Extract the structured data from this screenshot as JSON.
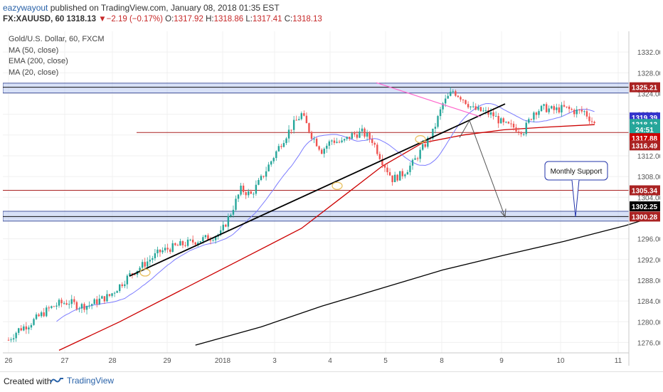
{
  "header": {
    "author": "eazywayout",
    "published_text": "published on TradingView.com, January 08, 2018 01:35 EST",
    "symbol": "FX:XAUUSD, 60",
    "last": "1318.13",
    "change_arrow": "▼",
    "change": "−2.19 (−0.17%)",
    "o_label": "O:",
    "o_value": "1317.92",
    "h_label": "H:",
    "h_value": "1318.86",
    "l_label": "L:",
    "l_value": "1317.41",
    "c_label": "C:",
    "c_value": "1318.13"
  },
  "legend": {
    "title": "Gold/U.S. Dollar, 60, FXCM",
    "ma50": "MA (50, close)",
    "ema200": "EMA (200, close)",
    "ma20": "MA (20, close)"
  },
  "footer": {
    "created_with": "Created with",
    "brand": "TradingView"
  },
  "colors": {
    "up": "#26a69a",
    "down": "#ef5350",
    "ema200": "#000000",
    "ma50": "#cc0000",
    "ma20": "#7b7bff",
    "zone": "#b8c8f0",
    "trendline": "#000000",
    "wedge": "#ff66cc",
    "horizontal": "#aa2222"
  },
  "chart_data": {
    "type": "candlestick",
    "symbol": "Gold/U.S. Dollar",
    "timeframe": "60",
    "y_range": [
      1274,
      1336
    ],
    "y_ticks": [
      "1276.00",
      "1280.00",
      "1284.00",
      "1288.00",
      "1292.00",
      "1296.00",
      "1300.00",
      "1304.00",
      "1308.00",
      "1312.00",
      "1316.00",
      "1320.00",
      "1324.00",
      "1328.00",
      "1332.00"
    ],
    "x_ticks": [
      "26",
      "27",
      "28",
      "29",
      "2018",
      "3",
      "4",
      "5",
      "8",
      "9",
      "10",
      "11"
    ],
    "price_tags": [
      {
        "value": "1325.21",
        "color": "#aa2222"
      },
      {
        "value": "1319.39",
        "color": "#3333cc"
      },
      {
        "value": "1318.13",
        "color": "#26a69a"
      },
      {
        "value": "24:51",
        "color": "#26a69a"
      },
      {
        "value": "1317.88",
        "color": "#cc0000"
      },
      {
        "value": "1316.49",
        "color": "#aa2222"
      },
      {
        "value": "1305.34",
        "color": "#aa2222"
      },
      {
        "value": "1302.25",
        "color": "#000000"
      },
      {
        "value": "1300.28",
        "color": "#aa2222"
      }
    ],
    "annotations": [
      {
        "text": "Monthly Support"
      }
    ],
    "price_path": [
      [
        0,
        1276.5
      ],
      [
        4,
        1278.5
      ],
      [
        8,
        1279.5
      ],
      [
        12,
        1281
      ],
      [
        16,
        1282.5
      ],
      [
        20,
        1283.5
      ],
      [
        24,
        1283.8
      ],
      [
        28,
        1283
      ],
      [
        32,
        1283.2
      ],
      [
        36,
        1284.2
      ],
      [
        40,
        1285
      ],
      [
        44,
        1287
      ],
      [
        48,
        1289
      ],
      [
        52,
        1290.5
      ],
      [
        56,
        1292
      ],
      [
        60,
        1293.5
      ],
      [
        64,
        1294.2
      ],
      [
        68,
        1294.8
      ],
      [
        72,
        1295.3
      ],
      [
        76,
        1295.8
      ],
      [
        80,
        1296.3
      ],
      [
        84,
        1297
      ],
      [
        88,
        1301
      ],
      [
        92,
        1305.5
      ],
      [
        96,
        1304.5
      ],
      [
        100,
        1307.5
      ],
      [
        104,
        1311
      ],
      [
        108,
        1314.5
      ],
      [
        112,
        1317.5
      ],
      [
        116,
        1320
      ],
      [
        120,
        1316
      ],
      [
        124,
        1313
      ],
      [
        128,
        1315
      ],
      [
        132,
        1314.5
      ],
      [
        136,
        1316
      ],
      [
        140,
        1316.5
      ],
      [
        144,
        1315
      ],
      [
        148,
        1311
      ],
      [
        152,
        1307.5
      ],
      [
        156,
        1308.5
      ],
      [
        160,
        1310.5
      ],
      [
        164,
        1313.5
      ],
      [
        168,
        1316.5
      ],
      [
        172,
        1322
      ],
      [
        176,
        1324.5
      ],
      [
        180,
        1323
      ],
      [
        184,
        1321
      ],
      [
        188,
        1320.5
      ],
      [
        192,
        1319.8
      ],
      [
        196,
        1318
      ],
      [
        200,
        1317.5
      ],
      [
        204,
        1316.8
      ],
      [
        208,
        1320.5
      ],
      [
        212,
        1321.2
      ],
      [
        216,
        1320.8
      ],
      [
        220,
        1321.2
      ],
      [
        224,
        1320.6
      ],
      [
        228,
        1320.5
      ],
      [
        232,
        1318.1
      ]
    ],
    "ema200_path": [
      [
        74,
        1275.5
      ],
      [
        100,
        1279
      ],
      [
        124,
        1283
      ],
      [
        148,
        1286.5
      ],
      [
        172,
        1290
      ],
      [
        196,
        1292.8
      ],
      [
        220,
        1295.5
      ],
      [
        244,
        1298.5
      ],
      [
        258,
        1300.6
      ]
    ],
    "ma50_path": [
      [
        20,
        1274.5
      ],
      [
        44,
        1280
      ],
      [
        68,
        1286
      ],
      [
        92,
        1292
      ],
      [
        116,
        1298
      ],
      [
        132,
        1304
      ],
      [
        148,
        1310
      ],
      [
        164,
        1314.5
      ],
      [
        180,
        1316
      ],
      [
        196,
        1317
      ],
      [
        212,
        1317.5
      ],
      [
        232,
        1318
      ]
    ]
  }
}
